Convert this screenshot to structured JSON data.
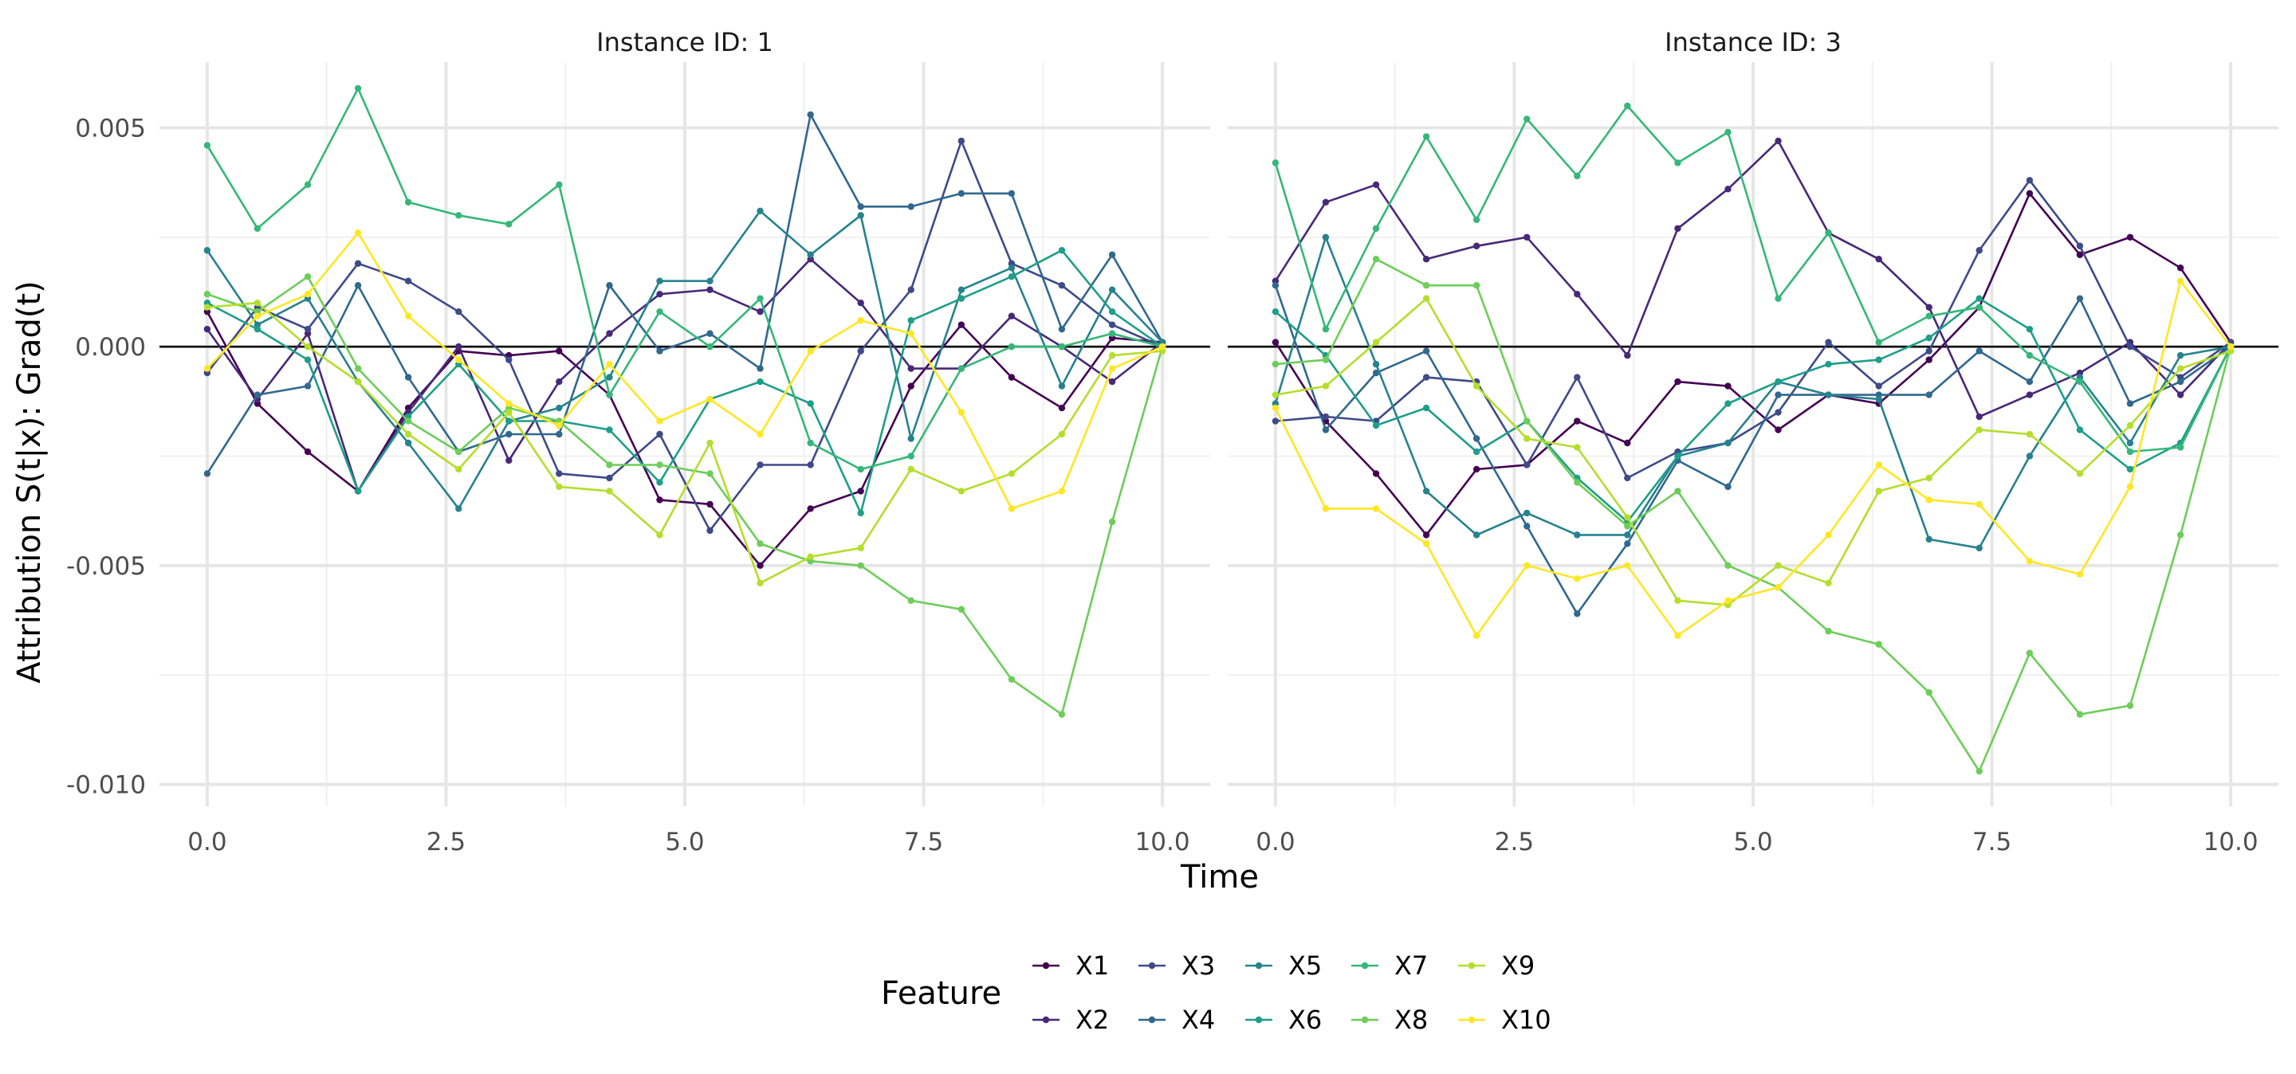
{
  "chart_data": {
    "type": "line",
    "ylabel": "Attribution S(t|x): Grad(t)",
    "xlabel": "Time",
    "xlim": [
      -0.5,
      10.5
    ],
    "ylim": [
      -0.0105,
      0.0065
    ],
    "x_ticks": [
      0,
      2.5,
      5,
      7.5,
      10
    ],
    "x_tick_labels": [
      "0.0",
      "2.5",
      "5.0",
      "7.5",
      "10.0"
    ],
    "y_ticks": [
      0.005,
      0,
      -0.005,
      -0.01
    ],
    "y_tick_labels": [
      "0.005",
      "0.000",
      "-0.005",
      "-0.010"
    ],
    "grid": true,
    "reference_line_y": 0,
    "x": [
      0,
      0.526,
      1.053,
      1.579,
      2.105,
      2.632,
      3.158,
      3.684,
      4.211,
      4.737,
      5.263,
      5.789,
      6.316,
      6.842,
      7.368,
      7.895,
      8.421,
      8.947,
      9.474,
      10
    ],
    "legend": {
      "title": "Feature",
      "placement": "bottom"
    },
    "series_names": [
      "X1",
      "X2",
      "X3",
      "X4",
      "X5",
      "X6",
      "X7",
      "X8",
      "X9",
      "X10"
    ],
    "colors": [
      "#440154",
      "#482878",
      "#3E4A89",
      "#31688E",
      "#26828E",
      "#1F9E89",
      "#35B779",
      "#6DCD59",
      "#B4DE2C",
      "#FDE725"
    ],
    "panels": [
      {
        "title": "Instance ID: 1",
        "series": [
          {
            "name": "X1",
            "values": [
              0.0008,
              -0.0013,
              -0.0024,
              -0.0033,
              -0.0014,
              -0.0001,
              -0.0002,
              -0.0001,
              -0.0011,
              -0.0035,
              -0.0036,
              -0.005,
              -0.0037,
              -0.0033,
              -0.0009,
              0.0005,
              -0.0007,
              -0.0014,
              0.0002,
              0.0001
            ]
          },
          {
            "name": "X2",
            "values": [
              0.0004,
              -0.0012,
              0.0003,
              -0.0033,
              -0.0015,
              0.0,
              -0.0026,
              -0.0008,
              0.0003,
              0.0012,
              0.0013,
              0.0008,
              0.002,
              0.001,
              -0.0005,
              -0.0005,
              0.0007,
              0.0,
              -0.0008,
              0.0001
            ]
          },
          {
            "name": "X3",
            "values": [
              -0.0006,
              0.0009,
              0.0004,
              0.0019,
              0.0015,
              0.0008,
              -0.0003,
              -0.0029,
              -0.003,
              -0.002,
              -0.0042,
              -0.0027,
              -0.0027,
              -0.0001,
              0.0013,
              0.0047,
              0.0019,
              0.0014,
              0.0005,
              0.0
            ]
          },
          {
            "name": "X4",
            "values": [
              -0.0029,
              -0.0011,
              -0.0009,
              0.0014,
              -0.0007,
              -0.0024,
              -0.002,
              -0.002,
              0.0014,
              -0.0001,
              0.0003,
              -0.0005,
              0.0053,
              0.0032,
              0.0032,
              0.0035,
              0.0035,
              0.0004,
              0.0021,
              0.0001
            ]
          },
          {
            "name": "X5",
            "values": [
              0.0022,
              0.0005,
              0.0011,
              -0.0008,
              -0.0022,
              -0.0037,
              -0.0017,
              -0.0014,
              -0.0007,
              0.0015,
              0.0015,
              0.0031,
              0.0021,
              0.003,
              -0.0021,
              0.0013,
              0.0018,
              -0.0009,
              0.0013,
              0.0001
            ]
          },
          {
            "name": "X6",
            "values": [
              0.001,
              0.0004,
              -0.0003,
              -0.0033,
              -0.0016,
              -0.0004,
              -0.0017,
              -0.0017,
              -0.0019,
              -0.0031,
              -0.0012,
              -0.0008,
              -0.0013,
              -0.0038,
              0.0006,
              0.0011,
              0.0016,
              0.0022,
              0.0008,
              0.0
            ]
          },
          {
            "name": "X7",
            "values": [
              0.0046,
              0.0027,
              0.0037,
              0.0059,
              0.0033,
              0.003,
              0.0028,
              0.0037,
              -0.0011,
              0.0008,
              0.0,
              0.0011,
              -0.0022,
              -0.0028,
              -0.0025,
              -0.0005,
              0.0,
              0.0,
              0.0003,
              0.0
            ]
          },
          {
            "name": "X8",
            "values": [
              0.0012,
              0.0008,
              0.0016,
              -0.0005,
              -0.0017,
              -0.0024,
              -0.0014,
              -0.0017,
              -0.0027,
              -0.0027,
              -0.0029,
              -0.0045,
              -0.0049,
              -0.005,
              -0.0058,
              -0.006,
              -0.0076,
              -0.0084,
              -0.004,
              0.0
            ]
          },
          {
            "name": "X9",
            "values": [
              0.0009,
              0.001,
              0.0,
              -0.0008,
              -0.002,
              -0.0028,
              -0.0015,
              -0.0032,
              -0.0033,
              -0.0043,
              -0.0022,
              -0.0054,
              -0.0048,
              -0.0046,
              -0.0028,
              -0.0033,
              -0.0029,
              -0.002,
              -0.0002,
              -0.0001
            ]
          },
          {
            "name": "X10",
            "values": [
              -0.0005,
              0.0007,
              0.0012,
              0.0026,
              0.0007,
              -0.0003,
              -0.0013,
              -0.0018,
              -0.0004,
              -0.0017,
              -0.0012,
              -0.002,
              -0.0001,
              0.0006,
              0.0003,
              -0.0015,
              -0.0037,
              -0.0033,
              -0.0005,
              0.0
            ]
          }
        ]
      },
      {
        "title": "Instance ID: 3",
        "series": [
          {
            "name": "X1",
            "values": [
              0.0001,
              -0.0017,
              -0.0029,
              -0.0043,
              -0.0028,
              -0.0027,
              -0.0017,
              -0.0022,
              -0.0008,
              -0.0009,
              -0.0019,
              -0.0011,
              -0.0013,
              -0.0003,
              0.0009,
              0.0035,
              0.0021,
              0.0025,
              0.0018,
              0.0001
            ]
          },
          {
            "name": "X2",
            "values": [
              0.0015,
              0.0033,
              0.0037,
              0.002,
              0.0023,
              0.0025,
              0.0012,
              -0.0002,
              0.0027,
              0.0036,
              0.0047,
              0.0026,
              0.002,
              0.0009,
              -0.0016,
              -0.0011,
              -0.0006,
              0.0001,
              -0.0011,
              0.0001
            ]
          },
          {
            "name": "X3",
            "values": [
              -0.0017,
              -0.0016,
              -0.0017,
              -0.0007,
              -0.0008,
              -0.0027,
              -0.0007,
              -0.003,
              -0.0024,
              -0.0022,
              -0.0015,
              0.0001,
              -0.0009,
              -0.0001,
              0.0022,
              0.0038,
              0.0023,
              0.0,
              -0.0007,
              0.0001
            ]
          },
          {
            "name": "X4",
            "values": [
              0.0014,
              -0.0019,
              -0.0006,
              -0.0001,
              -0.0021,
              -0.0041,
              -0.0061,
              -0.0045,
              -0.0026,
              -0.0032,
              -0.0011,
              -0.0011,
              -0.0011,
              -0.0011,
              -0.0001,
              -0.0008,
              0.0011,
              -0.0013,
              -0.0008,
              0.0
            ]
          },
          {
            "name": "X5",
            "values": [
              -0.0013,
              0.0025,
              -0.0004,
              -0.0033,
              -0.0043,
              -0.0038,
              -0.0043,
              -0.0043,
              -0.0025,
              -0.0022,
              -0.0008,
              -0.0011,
              -0.0012,
              -0.0044,
              -0.0046,
              -0.0025,
              -0.0007,
              -0.0022,
              -0.0002,
              0.0
            ]
          },
          {
            "name": "X6",
            "values": [
              0.0008,
              -0.0002,
              -0.0018,
              -0.0014,
              -0.0024,
              -0.0017,
              -0.003,
              -0.004,
              -0.0025,
              -0.0013,
              -0.0008,
              -0.0004,
              -0.0003,
              0.0002,
              0.0011,
              0.0004,
              -0.0019,
              -0.0028,
              -0.0022,
              0.0
            ]
          },
          {
            "name": "X7",
            "values": [
              0.0042,
              0.0004,
              0.0027,
              0.0048,
              0.0029,
              0.0052,
              0.0039,
              0.0055,
              0.0042,
              0.0049,
              0.0011,
              0.0026,
              0.0001,
              0.0007,
              0.0009,
              -0.0002,
              -0.0008,
              -0.0024,
              -0.0023,
              0.0
            ]
          },
          {
            "name": "X8",
            "values": [
              -0.0004,
              -0.0003,
              0.002,
              0.0014,
              0.0014,
              -0.0017,
              -0.0031,
              -0.0041,
              -0.0033,
              -0.005,
              -0.0055,
              -0.0065,
              -0.0068,
              -0.0079,
              -0.0097,
              -0.007,
              -0.0084,
              -0.0082,
              -0.0043,
              0.0
            ]
          },
          {
            "name": "X9",
            "values": [
              -0.0011,
              -0.0009,
              0.0001,
              0.0011,
              -0.0009,
              -0.0021,
              -0.0023,
              -0.0039,
              -0.0058,
              -0.0059,
              -0.005,
              -0.0054,
              -0.0033,
              -0.003,
              -0.0019,
              -0.002,
              -0.0029,
              -0.0018,
              -0.0005,
              -0.0001
            ]
          },
          {
            "name": "X10",
            "values": [
              -0.0014,
              -0.0037,
              -0.0037,
              -0.0045,
              -0.0066,
              -0.005,
              -0.0053,
              -0.005,
              -0.0066,
              -0.0058,
              -0.0055,
              -0.0043,
              -0.0027,
              -0.0035,
              -0.0036,
              -0.0049,
              -0.0052,
              -0.0032,
              0.0015,
              0.0
            ]
          }
        ]
      }
    ]
  }
}
